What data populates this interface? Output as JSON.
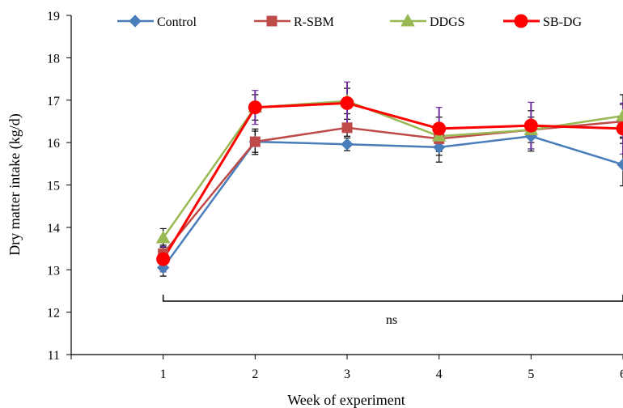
{
  "chart_data": {
    "type": "line",
    "xlabel": "Week of experiment",
    "ylabel": "Dry matter intake (kg/d)",
    "x": [
      1,
      2,
      3,
      4,
      5,
      6
    ],
    "x_ticks": [
      "1",
      "2",
      "3",
      "4",
      "5",
      "6"
    ],
    "xlim": [
      0,
      6
    ],
    "ylim": [
      11,
      19
    ],
    "y_ticks": [
      "11",
      "12",
      "13",
      "14",
      "15",
      "16",
      "17",
      "18",
      "19"
    ],
    "grid": false,
    "legend_position": "top",
    "annotation": "ns",
    "series": [
      {
        "name": "Control",
        "color": "#4a7ebb",
        "marker": "diamond",
        "values": [
          13.05,
          16.02,
          15.96,
          15.89,
          16.15,
          15.48
        ],
        "errors": [
          0.2,
          0.25,
          0.15,
          0.35,
          0.35,
          0.5
        ]
      },
      {
        "name": "R-SBM",
        "color": "#be4b48",
        "marker": "square",
        "values": [
          13.38,
          16.02,
          16.35,
          16.09,
          16.3,
          16.5
        ],
        "errors": [
          0.2,
          0.3,
          0.2,
          0.3,
          0.3,
          0.4
        ]
      },
      {
        "name": "DDGS",
        "color": "#98b954",
        "marker": "triangle",
        "values": [
          13.75,
          16.83,
          16.98,
          16.15,
          16.3,
          16.63
        ],
        "errors": [
          0.22,
          0.3,
          0.3,
          0.45,
          0.45,
          0.5
        ]
      },
      {
        "name": "SB-DG",
        "color": "#ff0000",
        "marker": "circle",
        "values": [
          13.25,
          16.83,
          16.93,
          16.33,
          16.4,
          16.33
        ],
        "errors": [
          0.3,
          0.4,
          0.5,
          0.5,
          0.55,
          0.6
        ]
      }
    ]
  }
}
